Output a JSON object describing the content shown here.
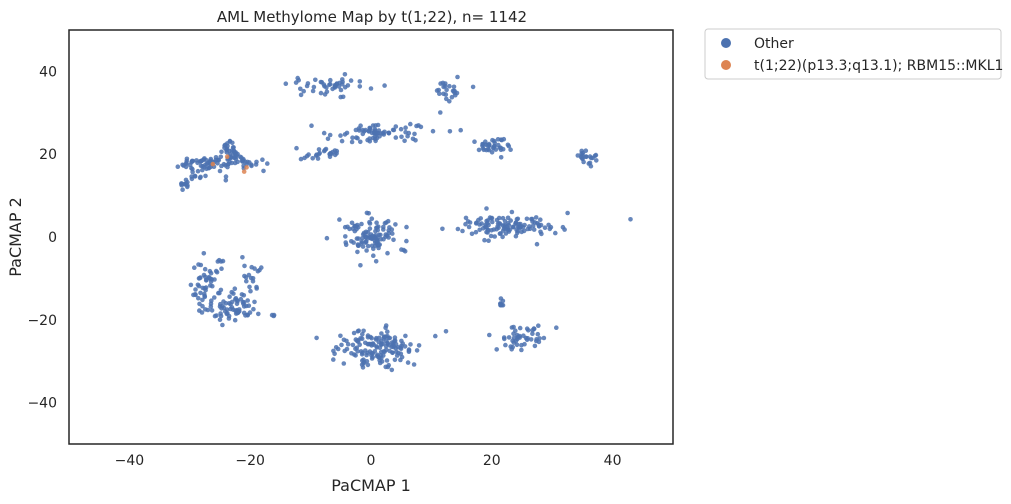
{
  "chart_data": {
    "type": "scatter",
    "title": "AML Methylome Map by t(1;22), n= 1142",
    "xlabel": "PaCMAP 1",
    "ylabel": "PaCMAP 2",
    "xlim": [
      -50,
      50
    ],
    "ylim": [
      -50,
      50
    ],
    "xticks": [
      -40,
      -20,
      0,
      20,
      40
    ],
    "yticks": [
      -40,
      -20,
      0,
      20,
      40
    ],
    "xtick_labels": [
      "−40",
      "−20",
      "0",
      "20",
      "40"
    ],
    "ytick_labels": [
      "−40",
      "−20",
      "0",
      "20",
      "40"
    ],
    "grid": false,
    "legend_position": "outside-top-right",
    "series": [
      {
        "name": "Other",
        "color": "#4c72b0",
        "clusters": [
          {
            "cx": -6,
            "cy": 36.5,
            "sx": 3.2,
            "sy": 1.2,
            "n": 45
          },
          {
            "cx": 12.5,
            "cy": 35.5,
            "sx": 1.2,
            "sy": 1.5,
            "n": 25
          },
          {
            "cx": -12,
            "cy": 38.5,
            "sx": 0.2,
            "sy": 0.2,
            "n": 1
          },
          {
            "cx": 2,
            "cy": 25,
            "sx": 4.5,
            "sy": 1.2,
            "n": 75
          },
          {
            "cx": -8,
            "cy": 20,
            "sx": 1.8,
            "sy": 0.7,
            "n": 25
          },
          {
            "cx": 20,
            "cy": 22,
            "sx": 1.5,
            "sy": 0.8,
            "n": 38
          },
          {
            "cx": 35.5,
            "cy": 19,
            "sx": 1.1,
            "sy": 1.0,
            "n": 22
          },
          {
            "cx": -29,
            "cy": 18,
            "sx": 2.0,
            "sy": 0.7,
            "n": 35
          },
          {
            "cx": -23.5,
            "cy": 20,
            "sx": 0.6,
            "sy": 2.5,
            "n": 30
          },
          {
            "cx": -21,
            "cy": 18,
            "sx": 1.4,
            "sy": 0.9,
            "n": 18
          },
          {
            "cx": 0,
            "cy": 0,
            "sx": 2.4,
            "sy": 2.6,
            "n": 110
          },
          {
            "cx": 23,
            "cy": 2.5,
            "sx": 4.0,
            "sy": 1.3,
            "n": 120
          },
          {
            "cx": -27,
            "cy": -11,
            "sx": 1.3,
            "sy": 3.2,
            "n": 55
          },
          {
            "cx": -23,
            "cy": -17,
            "sx": 2.3,
            "sy": 1.7,
            "n": 70
          },
          {
            "cx": -19.5,
            "cy": -9,
            "sx": 0.7,
            "sy": 2.0,
            "n": 18
          },
          {
            "cx": 1,
            "cy": -27,
            "sx": 3.0,
            "sy": 2.1,
            "n": 150
          },
          {
            "cx": 25,
            "cy": -24.5,
            "sx": 1.9,
            "sy": 1.7,
            "n": 48
          },
          {
            "cx": 21.5,
            "cy": -16,
            "sx": 0.3,
            "sy": 0.9,
            "n": 8
          },
          {
            "cx": 43,
            "cy": 4.3,
            "sx": 0.1,
            "sy": 0.1,
            "n": 1
          }
        ],
        "line_segments": [
          {
            "from": [
              -31.5,
              12
            ],
            "to": [
              -25,
              19
            ],
            "n": 35
          },
          {
            "from": [
              -24,
              22
            ],
            "to": [
              -20,
              16
            ],
            "n": 20
          }
        ]
      },
      {
        "name": "t(1;22)(p13.3;q13.1); RBM15::MKL1",
        "color": "#dd8452",
        "points": [
          [
            -26.2,
            17.6
          ],
          [
            -23.8,
            19.4
          ],
          [
            -20.6,
            16.8
          ],
          [
            -21.0,
            15.8
          ]
        ]
      }
    ]
  }
}
